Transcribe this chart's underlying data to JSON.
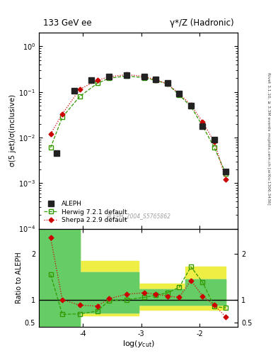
{
  "title_left": "133 GeV ee",
  "title_right": "γ*/Z (Hadronic)",
  "ylabel_main": "σ(5 jet)/σ(inclusive)",
  "ylabel_ratio": "Ratio to ALEPH",
  "xlabel": "log(y_{cut})",
  "watermark": "ALEPH_2004_S5765862",
  "right_label_top": "Rivet 3.1.10, ≥ 3.3M events",
  "right_label_bot": "mcplots.cern.ch [arXiv:1306.3436]",
  "aleph_x": [
    -4.45,
    -4.15,
    -3.85,
    -3.55,
    -3.25,
    -2.95,
    -2.75,
    -2.55,
    -2.35,
    -2.15,
    -1.95,
    -1.75,
    -1.55
  ],
  "aleph_y": [
    0.0045,
    0.105,
    0.185,
    0.215,
    0.235,
    0.215,
    0.19,
    0.16,
    0.092,
    0.05,
    0.018,
    0.009,
    0.0018
  ],
  "herwig_x": [
    -4.55,
    -4.35,
    -4.05,
    -3.75,
    -3.55,
    -3.25,
    -2.95,
    -2.75,
    -2.55,
    -2.35,
    -2.15,
    -1.95,
    -1.75,
    -1.55
  ],
  "herwig_y": [
    0.006,
    0.028,
    0.08,
    0.155,
    0.2,
    0.225,
    0.205,
    0.18,
    0.15,
    0.086,
    0.048,
    0.018,
    0.006,
    0.0016
  ],
  "sherpa_x": [
    -4.55,
    -4.35,
    -4.05,
    -3.75,
    -3.55,
    -3.25,
    -2.95,
    -2.75,
    -2.55,
    -2.35,
    -2.15,
    -1.95,
    -1.75,
    -1.55
  ],
  "sherpa_y": [
    0.012,
    0.033,
    0.115,
    0.18,
    0.215,
    0.24,
    0.22,
    0.185,
    0.15,
    0.092,
    0.052,
    0.022,
    0.008,
    0.0012
  ],
  "herwig_ratio_x": [
    -4.55,
    -4.35,
    -4.05,
    -3.75,
    -3.55,
    -3.25,
    -2.95,
    -2.75,
    -2.55,
    -2.35,
    -2.15,
    -1.95,
    -1.75,
    -1.55
  ],
  "herwig_ratio_y": [
    1.55,
    0.68,
    0.69,
    0.75,
    0.98,
    1.0,
    1.05,
    1.1,
    1.15,
    1.27,
    1.72,
    1.38,
    0.85,
    0.82
  ],
  "sherpa_ratio_x": [
    -4.55,
    -4.35,
    -4.05,
    -3.75,
    -3.55,
    -3.25,
    -2.95,
    -2.75,
    -2.55,
    -2.35,
    -2.15,
    -1.95,
    -1.75,
    -1.55
  ],
  "sherpa_ratio_y": [
    2.35,
    1.0,
    0.88,
    0.86,
    1.02,
    1.12,
    1.15,
    1.12,
    1.08,
    1.05,
    1.42,
    1.08,
    0.88,
    0.62
  ],
  "band_yellow_edges": [
    -4.75,
    -4.3,
    -4.05,
    -3.55,
    -3.05,
    -2.55,
    -2.25,
    -1.85,
    -1.55
  ],
  "band_yellow_low": [
    0.41,
    0.41,
    0.65,
    0.65,
    0.78,
    0.78,
    0.78,
    0.78,
    0.78
  ],
  "band_yellow_high": [
    2.55,
    2.55,
    1.85,
    1.85,
    1.35,
    1.35,
    1.72,
    1.72,
    2.55
  ],
  "band_green_edges": [
    -4.75,
    -4.3,
    -4.05,
    -3.55,
    -3.05,
    -2.55,
    -2.25,
    -1.85,
    -1.55
  ],
  "band_green_low": [
    0.41,
    0.41,
    0.72,
    0.72,
    0.88,
    0.88,
    0.88,
    0.88,
    0.88
  ],
  "band_green_high": [
    2.55,
    2.55,
    1.6,
    1.6,
    1.22,
    1.22,
    1.45,
    1.45,
    2.55
  ],
  "aleph_color": "#222222",
  "herwig_color": "#339900",
  "sherpa_color": "#cc0000",
  "yellow_color": "#eeee44",
  "green_color": "#66cc66",
  "ylim_main": [
    0.0001,
    2.0
  ],
  "ylim_ratio": [
    0.41,
    2.55
  ],
  "xlim": [
    -4.75,
    -1.35
  ],
  "xticks": [
    -4,
    -3,
    -2
  ],
  "xtick_labels": [
    "-4",
    "-3",
    "-2"
  ],
  "yticks_ratio": [
    0.5,
    1.0,
    2.0
  ],
  "ytick_labels_ratio": [
    "0.5",
    "1",
    "2"
  ]
}
